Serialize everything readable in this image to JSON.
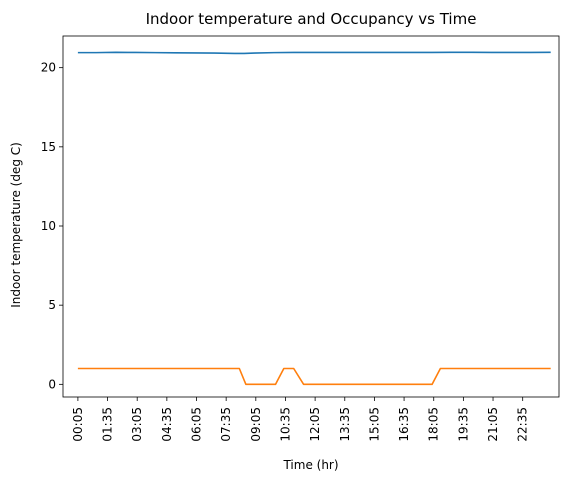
{
  "chart_data": {
    "type": "line",
    "title": "Indoor temperature and Occupancy vs Time",
    "xlabel": "Time (hr)",
    "ylabel": "Indoor temperature (deg C)",
    "ylim": [
      -0.8,
      22
    ],
    "yticks": [
      0,
      5,
      10,
      15,
      20
    ],
    "grid": false,
    "legend": "none",
    "x_tick_labels": [
      "00:05",
      "01:35",
      "03:05",
      "04:35",
      "06:05",
      "07:35",
      "09:05",
      "10:35",
      "12:05",
      "13:35",
      "15:05",
      "16:35",
      "18:05",
      "19:35",
      "21:05",
      "22:35"
    ],
    "x_tick_hours": [
      0.0833,
      1.5833,
      3.0833,
      4.5833,
      6.0833,
      7.5833,
      9.0833,
      10.5833,
      12.0833,
      13.5833,
      15.0833,
      16.5833,
      18.0833,
      19.5833,
      21.0833,
      22.5833
    ],
    "xlim": [
      -0.67,
      24.42
    ],
    "series": [
      {
        "color": "#1f77b4",
        "x": [
          0.0833,
          1,
          2,
          3,
          4,
          5,
          6,
          7,
          8,
          8.5,
          9,
          10,
          11,
          12,
          13,
          14,
          15,
          16,
          17,
          18,
          19,
          20,
          21,
          22,
          23,
          24
        ],
        "values": [
          20.95,
          20.95,
          20.97,
          20.96,
          20.95,
          20.94,
          20.93,
          20.92,
          20.9,
          20.9,
          20.92,
          20.95,
          20.96,
          20.96,
          20.96,
          20.96,
          20.96,
          20.96,
          20.96,
          20.96,
          20.97,
          20.97,
          20.96,
          20.96,
          20.96,
          20.97
        ]
      },
      {
        "color": "#ff7f0e",
        "x": [
          0.0833,
          8.25,
          8.58,
          10.08,
          10.5,
          11.0,
          11.5,
          18.0,
          18.42,
          24.0
        ],
        "values": [
          1,
          1,
          0,
          0,
          1,
          1,
          0,
          0,
          1,
          1
        ]
      }
    ]
  }
}
